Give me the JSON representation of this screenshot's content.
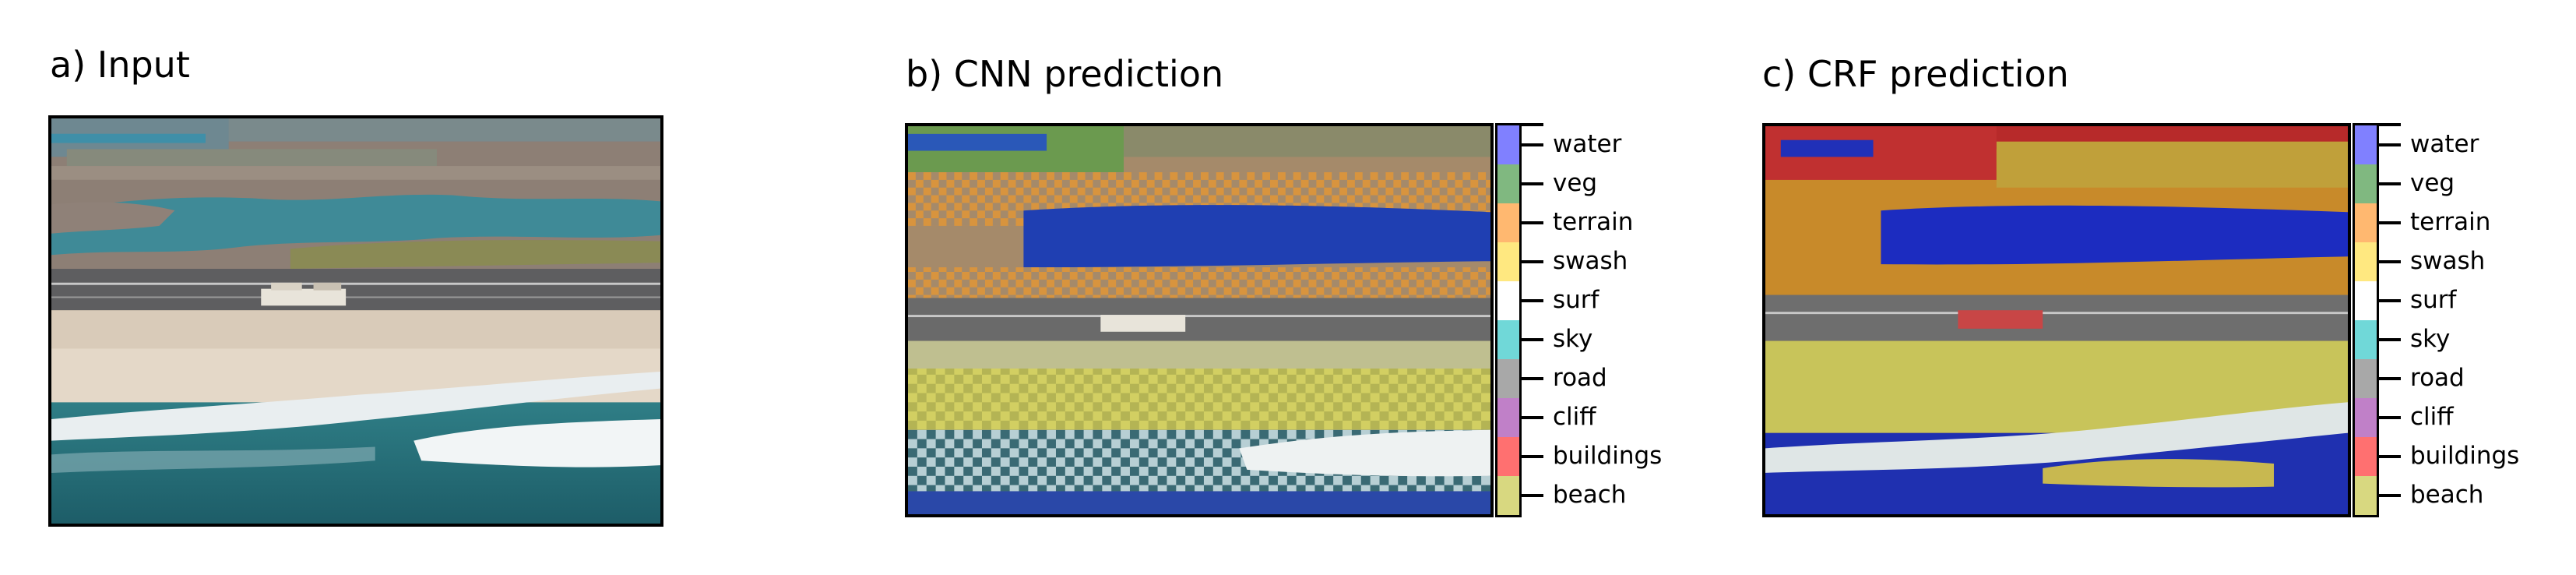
{
  "panels": {
    "input": {
      "title": "a) Input"
    },
    "cnn": {
      "title": "b) CNN prediction"
    },
    "crf": {
      "title": "c) CRF prediction"
    }
  },
  "legend": {
    "classes": [
      {
        "name": "water",
        "color": "#8080ff"
      },
      {
        "name": "veg",
        "color": "#80b880"
      },
      {
        "name": "terrain",
        "color": "#ffb870"
      },
      {
        "name": "swash",
        "color": "#ffe880"
      },
      {
        "name": "surf",
        "color": "#ffffff"
      },
      {
        "name": "sky",
        "color": "#70d8d8"
      },
      {
        "name": "road",
        "color": "#a8a8a8"
      },
      {
        "name": "cliff",
        "color": "#c080c8"
      },
      {
        "name": "buildings",
        "color": "#ff7070"
      },
      {
        "name": "beach",
        "color": "#d8d880"
      }
    ]
  }
}
